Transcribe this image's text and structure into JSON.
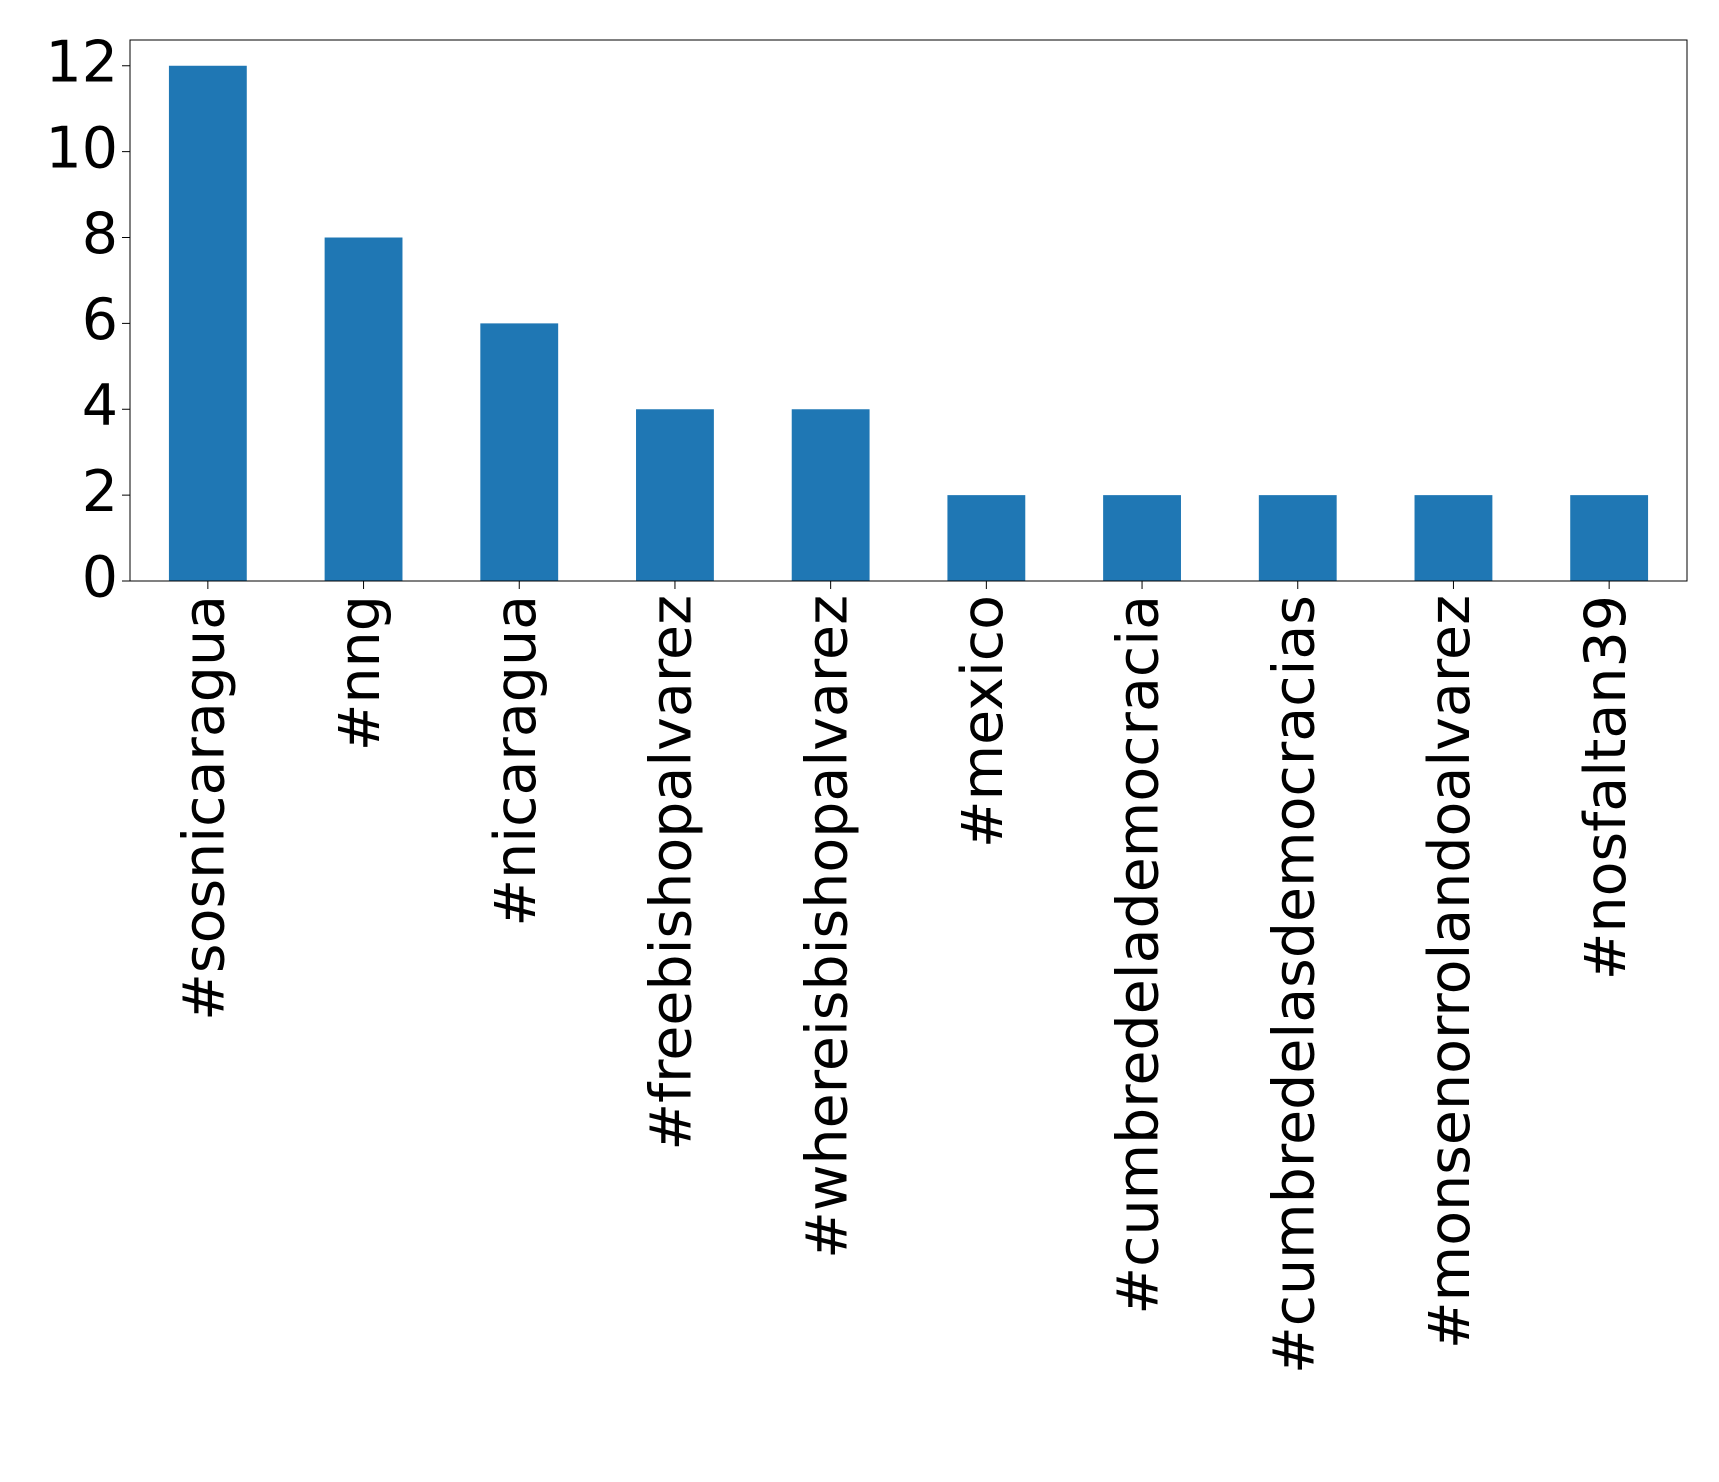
{
  "chart_data": {
    "type": "bar",
    "categories": [
      "#sosnicaragua",
      "#nng",
      "#nicaragua",
      "#freebishopalvarez",
      "#whereisbishopalvarez",
      "#mexico",
      "#cumbredelademocracia",
      "#cumbredelasdemocracias",
      "#monsenorrolandoalvarez",
      "#nosfaltan39"
    ],
    "values": [
      12,
      8,
      6,
      4,
      4,
      2,
      2,
      2,
      2,
      2
    ],
    "color": "#1f77b4",
    "ylim": [
      0,
      12.6
    ],
    "yticks": [
      0,
      2,
      4,
      6,
      8,
      10,
      12
    ],
    "grid": false
  }
}
